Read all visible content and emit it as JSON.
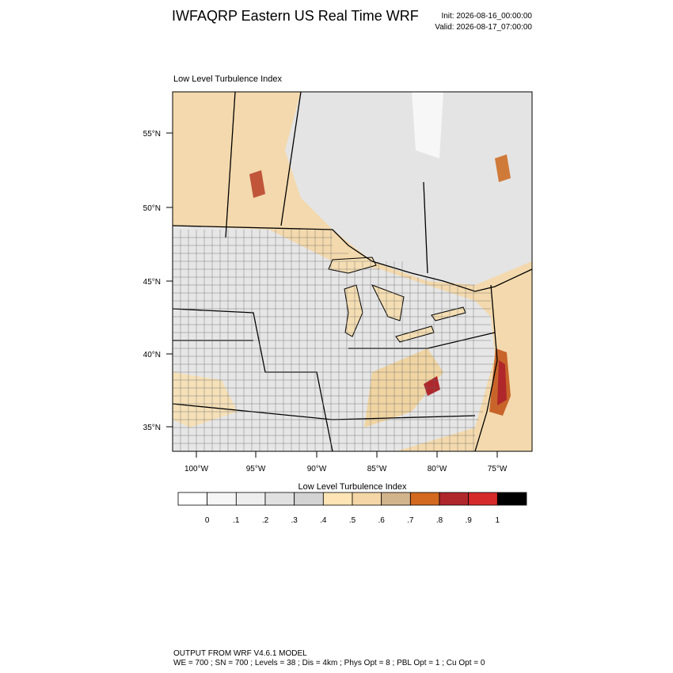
{
  "header": {
    "title": "IWFAQRP Eastern US Real Time WRF",
    "init": "Init: 2026-08-16_00:00:00",
    "valid": "Valid: 2026-08-17_07:00:00"
  },
  "map": {
    "subtitle": "Low Level Turbulence Index",
    "lat_labels": [
      "55°N",
      "50°N",
      "45°N",
      "40°N",
      "35°N"
    ],
    "lon_labels": [
      "100°W",
      "95°W",
      "90°W",
      "85°W",
      "80°W",
      "75°W"
    ]
  },
  "colorbar": {
    "title": "Low Level Turbulence Index",
    "labels": [
      "0",
      ".1",
      ".2",
      ".3",
      ".4",
      ".5",
      ".6",
      ".7",
      ".8",
      ".9",
      "1"
    ],
    "colors": [
      "#ffffff",
      "#f6f6f6",
      "#eeeeee",
      "#e1e1e1",
      "#d3d3d3",
      "#ffe4b5",
      "#f5d6a6",
      "#d2b48c",
      "#d2691e",
      "#b0272b",
      "#d62a2a",
      "#000000"
    ]
  },
  "footer": {
    "line1": "OUTPUT FROM WRF V4.6.1 MODEL",
    "line2": "WE = 700 ; SN = 700 ; Levels = 38 ; Dis = 4km ; Phys Opt = 8 ; PBL Opt = 1 ; Cu Opt = 0"
  }
}
